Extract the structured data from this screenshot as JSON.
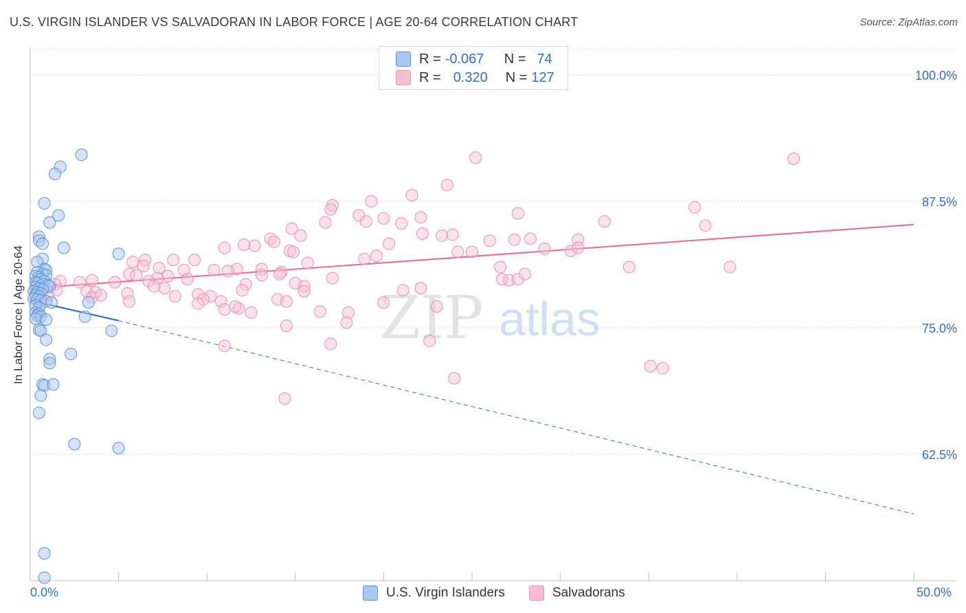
{
  "title": "U.S. VIRGIN ISLANDER VS SALVADORAN IN LABOR FORCE | AGE 20-64 CORRELATION CHART",
  "source": "Source: ZipAtlas.com",
  "watermark": {
    "zip": "ZIP",
    "atlas": "atlas"
  },
  "legend": {
    "rows": [
      {
        "r_label": "R =",
        "r_value": "-0.067",
        "n_label": "N =",
        "n_value": "74"
      },
      {
        "r_label": "R =",
        "r_value": "0.320",
        "n_label": "N =",
        "n_value": "127"
      }
    ]
  },
  "bottom_legend": {
    "series1": "U.S. Virgin Islanders",
    "series2": "Salvadorans"
  },
  "colors": {
    "blue_fill": "#a9c8f0",
    "blue_stroke": "#5b92de",
    "blue_line": "#2b6fd6",
    "pink_fill": "#f6bed0",
    "pink_stroke": "#ea8fae",
    "pink_line": "#e8719c",
    "axis_text": "#2b6fd6",
    "grid": "#d6d6d6"
  },
  "chart_data": {
    "type": "scatter",
    "title": "U.S. VIRGIN ISLANDER VS SALVADORAN IN LABOR FORCE | AGE 20-64 CORRELATION CHART",
    "xlabel": "",
    "ylabel": "In Labor Force | Age 20-64",
    "xlim": [
      0,
      50
    ],
    "ylim": [
      50,
      102.5
    ],
    "x_tick_labels": [
      "0.0%",
      "50.0%"
    ],
    "y_ticks": [
      62.5,
      75.0,
      87.5,
      100.0
    ],
    "y_tick_labels": [
      "62.5%",
      "75.0%",
      "87.5%",
      "100.0%"
    ],
    "series": [
      {
        "name": "U.S. Virgin Islanders",
        "R": -0.067,
        "N": 74,
        "trend": {
          "x0": 0.0,
          "y0": 77.7,
          "x1": 5.0,
          "y1": 75.7,
          "dash_to_x": 50.0,
          "dash_to_y": 56.6
        },
        "points": [
          [
            2.9,
            92.1
          ],
          [
            1.7,
            90.9
          ],
          [
            1.4,
            90.2
          ],
          [
            0.8,
            87.3
          ],
          [
            1.6,
            86.1
          ],
          [
            1.1,
            85.4
          ],
          [
            0.5,
            84.0
          ],
          [
            0.5,
            83.6
          ],
          [
            0.7,
            83.3
          ],
          [
            1.9,
            82.9
          ],
          [
            5.0,
            82.3
          ],
          [
            0.7,
            81.8
          ],
          [
            0.4,
            81.5
          ],
          [
            0.8,
            80.8
          ],
          [
            0.9,
            80.7
          ],
          [
            0.4,
            80.5
          ],
          [
            0.7,
            80.3
          ],
          [
            0.9,
            80.2
          ],
          [
            0.3,
            80.1
          ],
          [
            0.5,
            80.0
          ],
          [
            0.6,
            79.8
          ],
          [
            0.8,
            79.6
          ],
          [
            0.3,
            79.5
          ],
          [
            0.4,
            79.4
          ],
          [
            0.7,
            79.3
          ],
          [
            1.0,
            79.2
          ],
          [
            1.1,
            79.1
          ],
          [
            0.3,
            79.0
          ],
          [
            0.5,
            78.9
          ],
          [
            0.7,
            78.8
          ],
          [
            0.2,
            78.6
          ],
          [
            0.4,
            78.5
          ],
          [
            0.6,
            78.4
          ],
          [
            0.3,
            78.2
          ],
          [
            0.5,
            78.1
          ],
          [
            0.2,
            77.9
          ],
          [
            0.4,
            77.8
          ],
          [
            0.6,
            77.7
          ],
          [
            0.9,
            77.6
          ],
          [
            1.2,
            77.5
          ],
          [
            3.3,
            77.5
          ],
          [
            0.3,
            77.2
          ],
          [
            0.5,
            77.0
          ],
          [
            0.3,
            76.5
          ],
          [
            0.5,
            76.4
          ],
          [
            0.4,
            76.2
          ],
          [
            0.6,
            76.1
          ],
          [
            3.1,
            76.1
          ],
          [
            0.3,
            75.9
          ],
          [
            0.9,
            75.8
          ],
          [
            0.5,
            74.8
          ],
          [
            0.6,
            74.7
          ],
          [
            4.6,
            74.7
          ],
          [
            0.9,
            73.8
          ],
          [
            2.3,
            72.4
          ],
          [
            1.1,
            71.9
          ],
          [
            1.1,
            71.5
          ],
          [
            0.7,
            69.4
          ],
          [
            0.8,
            69.3
          ],
          [
            1.3,
            69.4
          ],
          [
            0.6,
            68.3
          ],
          [
            0.5,
            66.6
          ],
          [
            2.5,
            63.5
          ],
          [
            5.0,
            63.1
          ],
          [
            0.8,
            52.7
          ],
          [
            0.8,
            50.3
          ]
        ]
      },
      {
        "name": "Salvadorans",
        "R": 0.32,
        "N": 127,
        "trend": {
          "x0": 0.0,
          "y0": 78.9,
          "x1": 50.0,
          "y1": 85.2
        },
        "points": [
          [
            25.2,
            91.8
          ],
          [
            43.2,
            91.7
          ],
          [
            23.6,
            89.1
          ],
          [
            21.6,
            88.1
          ],
          [
            19.3,
            87.5
          ],
          [
            17.1,
            87.1
          ],
          [
            17.0,
            86.7
          ],
          [
            37.6,
            86.9
          ],
          [
            27.6,
            86.3
          ],
          [
            18.6,
            86.1
          ],
          [
            20.0,
            85.8
          ],
          [
            22.1,
            85.9
          ],
          [
            19.0,
            85.5
          ],
          [
            16.7,
            85.4
          ],
          [
            21.0,
            85.3
          ],
          [
            32.5,
            85.5
          ],
          [
            38.2,
            85.1
          ],
          [
            14.8,
            84.8
          ],
          [
            15.3,
            84.1
          ],
          [
            22.2,
            84.3
          ],
          [
            23.3,
            84.1
          ],
          [
            23.9,
            84.2
          ],
          [
            13.6,
            83.8
          ],
          [
            13.8,
            83.5
          ],
          [
            20.3,
            83.3
          ],
          [
            26.0,
            83.6
          ],
          [
            27.4,
            83.7
          ],
          [
            28.3,
            83.8
          ],
          [
            31.0,
            83.7
          ],
          [
            12.1,
            83.2
          ],
          [
            12.7,
            83.1
          ],
          [
            11.0,
            82.9
          ],
          [
            14.7,
            82.6
          ],
          [
            14.9,
            82.5
          ],
          [
            24.2,
            82.5
          ],
          [
            25.0,
            82.5
          ],
          [
            29.1,
            82.8
          ],
          [
            30.6,
            82.6
          ],
          [
            31.0,
            82.9
          ],
          [
            19.6,
            82.1
          ],
          [
            18.9,
            81.8
          ],
          [
            5.8,
            81.5
          ],
          [
            6.5,
            81.7
          ],
          [
            8.1,
            81.7
          ],
          [
            9.3,
            81.7
          ],
          [
            15.7,
            81.4
          ],
          [
            26.6,
            81.0
          ],
          [
            33.9,
            81.0
          ],
          [
            39.6,
            81.0
          ],
          [
            6.4,
            81.1
          ],
          [
            7.3,
            80.9
          ],
          [
            8.7,
            80.7
          ],
          [
            10.4,
            80.7
          ],
          [
            11.7,
            80.8
          ],
          [
            13.1,
            80.8
          ],
          [
            11.2,
            80.6
          ],
          [
            14.2,
            80.5
          ],
          [
            5.6,
            80.3
          ],
          [
            6.0,
            80.2
          ],
          [
            7.8,
            80.1
          ],
          [
            13.1,
            80.2
          ],
          [
            14.1,
            80.3
          ],
          [
            7.2,
            79.9
          ],
          [
            8.9,
            79.8
          ],
          [
            17.1,
            79.9
          ],
          [
            26.7,
            79.8
          ],
          [
            27.1,
            79.7
          ],
          [
            27.6,
            79.8
          ],
          [
            28.0,
            80.3
          ],
          [
            3.5,
            79.7
          ],
          [
            4.8,
            79.5
          ],
          [
            6.7,
            79.6
          ],
          [
            2.8,
            79.5
          ],
          [
            1.7,
            79.6
          ],
          [
            1.4,
            79.3
          ],
          [
            0.7,
            79.4
          ],
          [
            1.0,
            79.0
          ],
          [
            12.2,
            79.3
          ],
          [
            15.0,
            79.4
          ],
          [
            15.5,
            79.1
          ],
          [
            7.0,
            79.1
          ],
          [
            7.6,
            78.9
          ],
          [
            1.5,
            78.7
          ],
          [
            3.2,
            78.6
          ],
          [
            3.7,
            78.5
          ],
          [
            5.5,
            78.4
          ],
          [
            9.5,
            78.3
          ],
          [
            12.0,
            78.7
          ],
          [
            15.5,
            78.6
          ],
          [
            21.1,
            78.7
          ],
          [
            22.1,
            78.9
          ],
          [
            1.0,
            78.2
          ],
          [
            3.5,
            78.0
          ],
          [
            4.0,
            78.2
          ],
          [
            8.2,
            78.1
          ],
          [
            10.2,
            78.1
          ],
          [
            9.8,
            77.8
          ],
          [
            14.0,
            77.8
          ],
          [
            10.8,
            77.6
          ],
          [
            9.5,
            77.4
          ],
          [
            14.5,
            77.6
          ],
          [
            5.6,
            77.6
          ],
          [
            23.0,
            77.1
          ],
          [
            11.0,
            76.8
          ],
          [
            11.8,
            76.9
          ],
          [
            11.6,
            77.1
          ],
          [
            16.4,
            76.6
          ],
          [
            18.0,
            76.5
          ],
          [
            20.0,
            77.5
          ],
          [
            12.5,
            76.5
          ],
          [
            17.9,
            75.5
          ],
          [
            14.5,
            75.2
          ],
          [
            22.6,
            73.7
          ],
          [
            17.0,
            73.4
          ],
          [
            11.0,
            73.2
          ],
          [
            14.4,
            68.0
          ],
          [
            24.0,
            70.0
          ],
          [
            35.1,
            71.2
          ],
          [
            35.8,
            71.0
          ]
        ]
      }
    ]
  }
}
